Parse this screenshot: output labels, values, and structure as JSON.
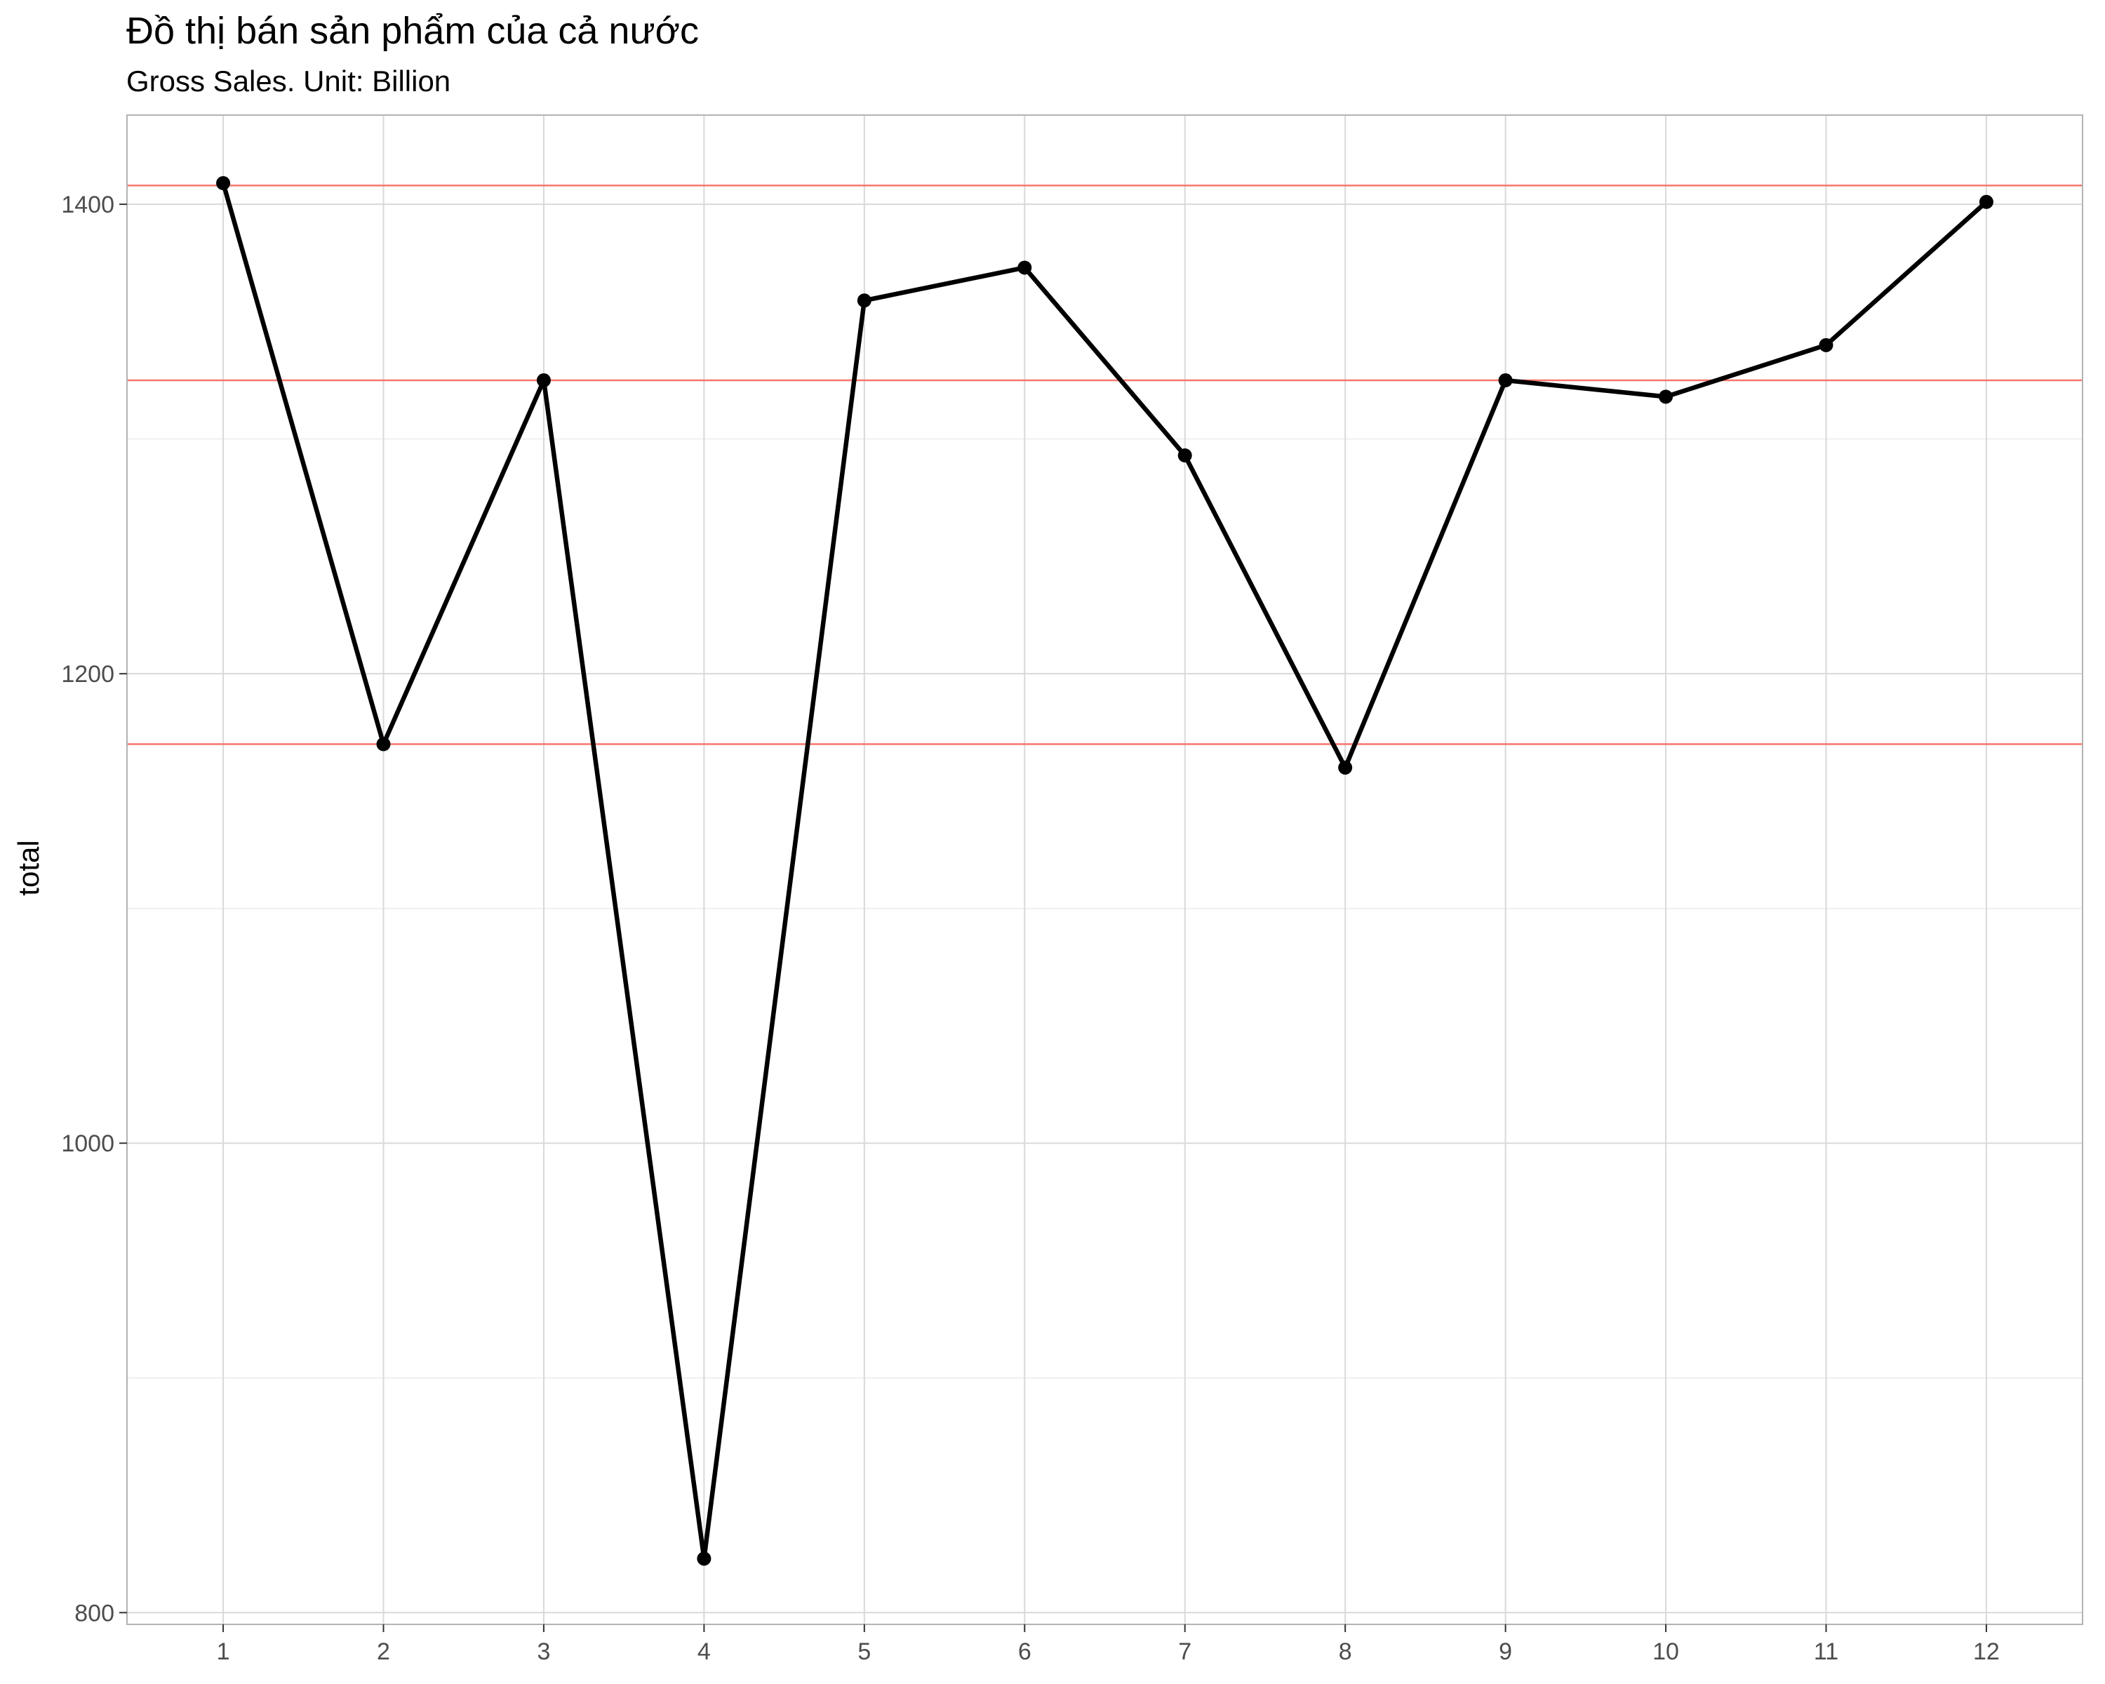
{
  "chart_data": {
    "type": "line",
    "title": "Đồ thị bán sản phẩm của cả nước",
    "subtitle": "Gross Sales. Unit: Billion",
    "xlabel": "",
    "ylabel": "total",
    "x": [
      1,
      2,
      3,
      4,
      5,
      6,
      7,
      8,
      9,
      10,
      11,
      12
    ],
    "series": [
      {
        "values": [
          1409,
          1170,
          1325,
          823,
          1359,
          1373,
          1293,
          1160,
          1325,
          1318,
          1340,
          1401
        ]
      }
    ],
    "reference_lines": [
      1408,
      1325,
      1170
    ],
    "xlim": [
      0.4,
      12.6
    ],
    "ylim": [
      795,
      1438
    ],
    "x_ticks": [
      1,
      2,
      3,
      4,
      5,
      6,
      7,
      8,
      9,
      10,
      11,
      12
    ],
    "y_ticks": [
      800,
      1000,
      1200,
      1400
    ],
    "grid": true,
    "legend": "none",
    "colors": {
      "line": "#000000",
      "points": "#000000",
      "reference_lines": "#f8766d",
      "grid_major": "#d9d9d9",
      "grid_minor": "#ebebeb",
      "panel_border": "#b3b3b3"
    }
  }
}
